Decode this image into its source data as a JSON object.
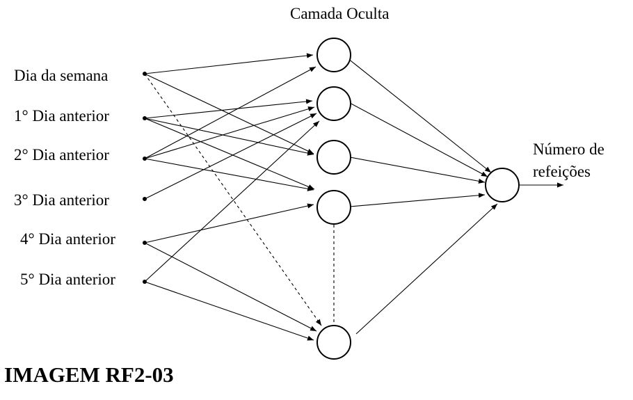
{
  "hidden_layer_title": "Camada Oculta",
  "inputs": [
    "Dia da semana",
    "1° Dia anterior",
    "2° Dia anterior",
    "3° Dia anterior",
    "4° Dia anterior",
    "5° Dia anterior"
  ],
  "output_label_line1": "Número de",
  "output_label_line2": "refeições",
  "caption": "IMAGEM RF2-03",
  "colors": {
    "line": "#000000",
    "background": "#ffffff"
  }
}
